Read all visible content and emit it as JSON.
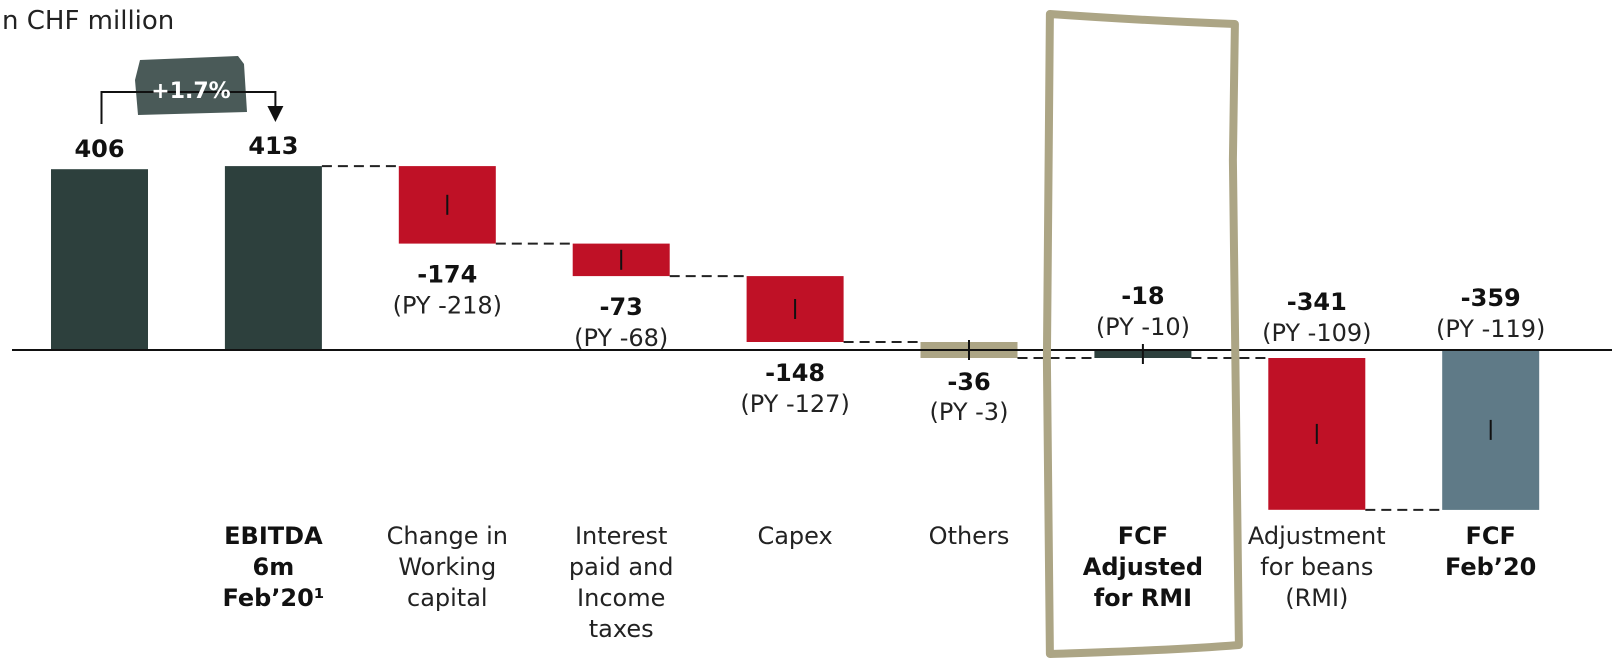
{
  "unit_label": "n CHF million",
  "growth_label": "+1.7%",
  "chart_data": {
    "type": "bar",
    "subtype": "waterfall",
    "unit": "CHF million",
    "bars": [
      {
        "name": "prior-year-ebitda",
        "category_lines": [],
        "bold_category": false,
        "value": 406,
        "value_label": "406",
        "py_label": "",
        "kind": "total",
        "color": "#2d403d"
      },
      {
        "name": "ebitda",
        "category_lines": [
          "EBITDA",
          "6m",
          "Feb’20¹"
        ],
        "bold_category": true,
        "value": 413,
        "value_label": "413",
        "py_label": "",
        "kind": "total",
        "color": "#2d403d"
      },
      {
        "name": "working-capital",
        "category_lines": [
          "Change in",
          "Working",
          "capital"
        ],
        "bold_category": false,
        "value": -174,
        "value_label": "-174",
        "py_label": "(PY -218)",
        "kind": "delta",
        "color": "#bf1126"
      },
      {
        "name": "interest-taxes",
        "category_lines": [
          "Interest",
          "paid and",
          "Income",
          "taxes"
        ],
        "bold_category": false,
        "value": -73,
        "value_label": "-73",
        "py_label": "(PY -68)",
        "kind": "delta",
        "color": "#bf1126"
      },
      {
        "name": "capex",
        "category_lines": [
          "Capex"
        ],
        "bold_category": false,
        "value": -148,
        "value_label": "-148",
        "py_label": "(PY -127)",
        "kind": "delta",
        "color": "#bf1126"
      },
      {
        "name": "others",
        "category_lines": [
          "Others"
        ],
        "bold_category": false,
        "value": -36,
        "value_label": "-36",
        "py_label": "(PY -3)",
        "kind": "delta",
        "color": "#aca585"
      },
      {
        "name": "fcf-adjusted-rmi",
        "category_lines": [
          "FCF",
          "Adjusted",
          "for RMI"
        ],
        "bold_category": true,
        "value": -18,
        "value_label": "-18",
        "py_label": "(PY -10)",
        "kind": "total",
        "color": "#2d403d"
      },
      {
        "name": "adjustment-beans",
        "category_lines": [
          "Adjustment",
          "for beans",
          "(RMI)"
        ],
        "bold_category": false,
        "value": -341,
        "value_label": "-341",
        "py_label": "(PY -109)",
        "kind": "delta",
        "color": "#bf1126"
      },
      {
        "name": "fcf-feb20",
        "category_lines": [
          "FCF",
          "Feb’20"
        ],
        "bold_category": true,
        "value": -359,
        "value_label": "-359",
        "py_label": "(PY -119)",
        "kind": "total",
        "color": "#5f7a87"
      }
    ],
    "highlight_color": "#aca585",
    "growth_badge_color": "#4a5a58"
  }
}
